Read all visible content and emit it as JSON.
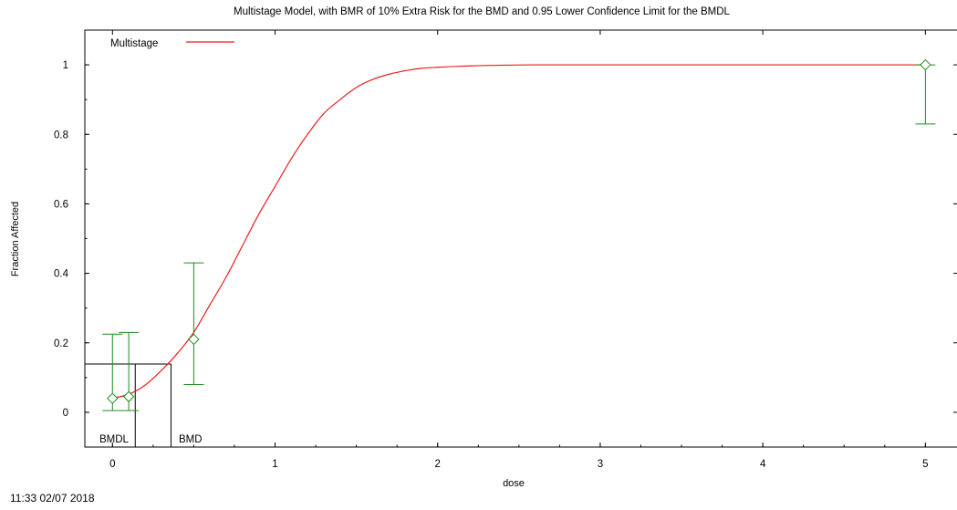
{
  "chart_data": {
    "type": "scatter",
    "title": "Multistage Model, with BMR of 10% Extra Risk for the BMD and 0.95 Lower Confidence Limit for the BMDL",
    "xlabel": "dose",
    "ylabel": "Fraction Affected",
    "xlim": [
      -0.17,
      5.2
    ],
    "ylim": [
      -0.1,
      1.1
    ],
    "x_ticks": [
      "0",
      "1",
      "2",
      "3",
      "4",
      "5"
    ],
    "y_ticks": [
      "0",
      "0.2",
      "0.4",
      "0.6",
      "0.8",
      "1"
    ],
    "legend": {
      "position": "top-left",
      "entries": [
        {
          "label": "Multistage",
          "color": "#ee1c1c"
        }
      ]
    },
    "series": [
      {
        "name": "Multistage",
        "kind": "line",
        "color": "#ee1c1c",
        "x": [
          0,
          0.1,
          0.2,
          0.3,
          0.4,
          0.5,
          0.6,
          0.7,
          0.8,
          0.9,
          1.0,
          1.1,
          1.2,
          1.3,
          1.4,
          1.5,
          1.6,
          1.7,
          1.8,
          1.9,
          2.0,
          2.2,
          2.4,
          2.6,
          2.8,
          3.0,
          3.5,
          4.0,
          4.5,
          5.0
        ],
        "y": [
          0.04,
          0.052,
          0.078,
          0.12,
          0.17,
          0.23,
          0.31,
          0.39,
          0.48,
          0.57,
          0.65,
          0.73,
          0.8,
          0.86,
          0.9,
          0.935,
          0.958,
          0.973,
          0.983,
          0.99,
          0.993,
          0.997,
          0.999,
          1.0,
          1.0,
          1.0,
          1.0,
          1.0,
          1.0,
          1.0
        ]
      },
      {
        "kind": "errorbar",
        "color": "#1c8c1c",
        "x": [
          0,
          0.1,
          0.5,
          5
        ],
        "y": [
          0.04,
          0.045,
          0.21,
          1.0
        ],
        "lower": [
          0.005,
          0.005,
          0.08,
          0.83
        ],
        "upper": [
          0.225,
          0.23,
          0.43,
          1.0
        ]
      }
    ],
    "bmr_level": 0.139,
    "bmd": 0.36,
    "bmdl": 0.14,
    "annotations": [
      "BMDL",
      "BMD"
    ]
  },
  "timestamp": "11:33 02/07 2018"
}
